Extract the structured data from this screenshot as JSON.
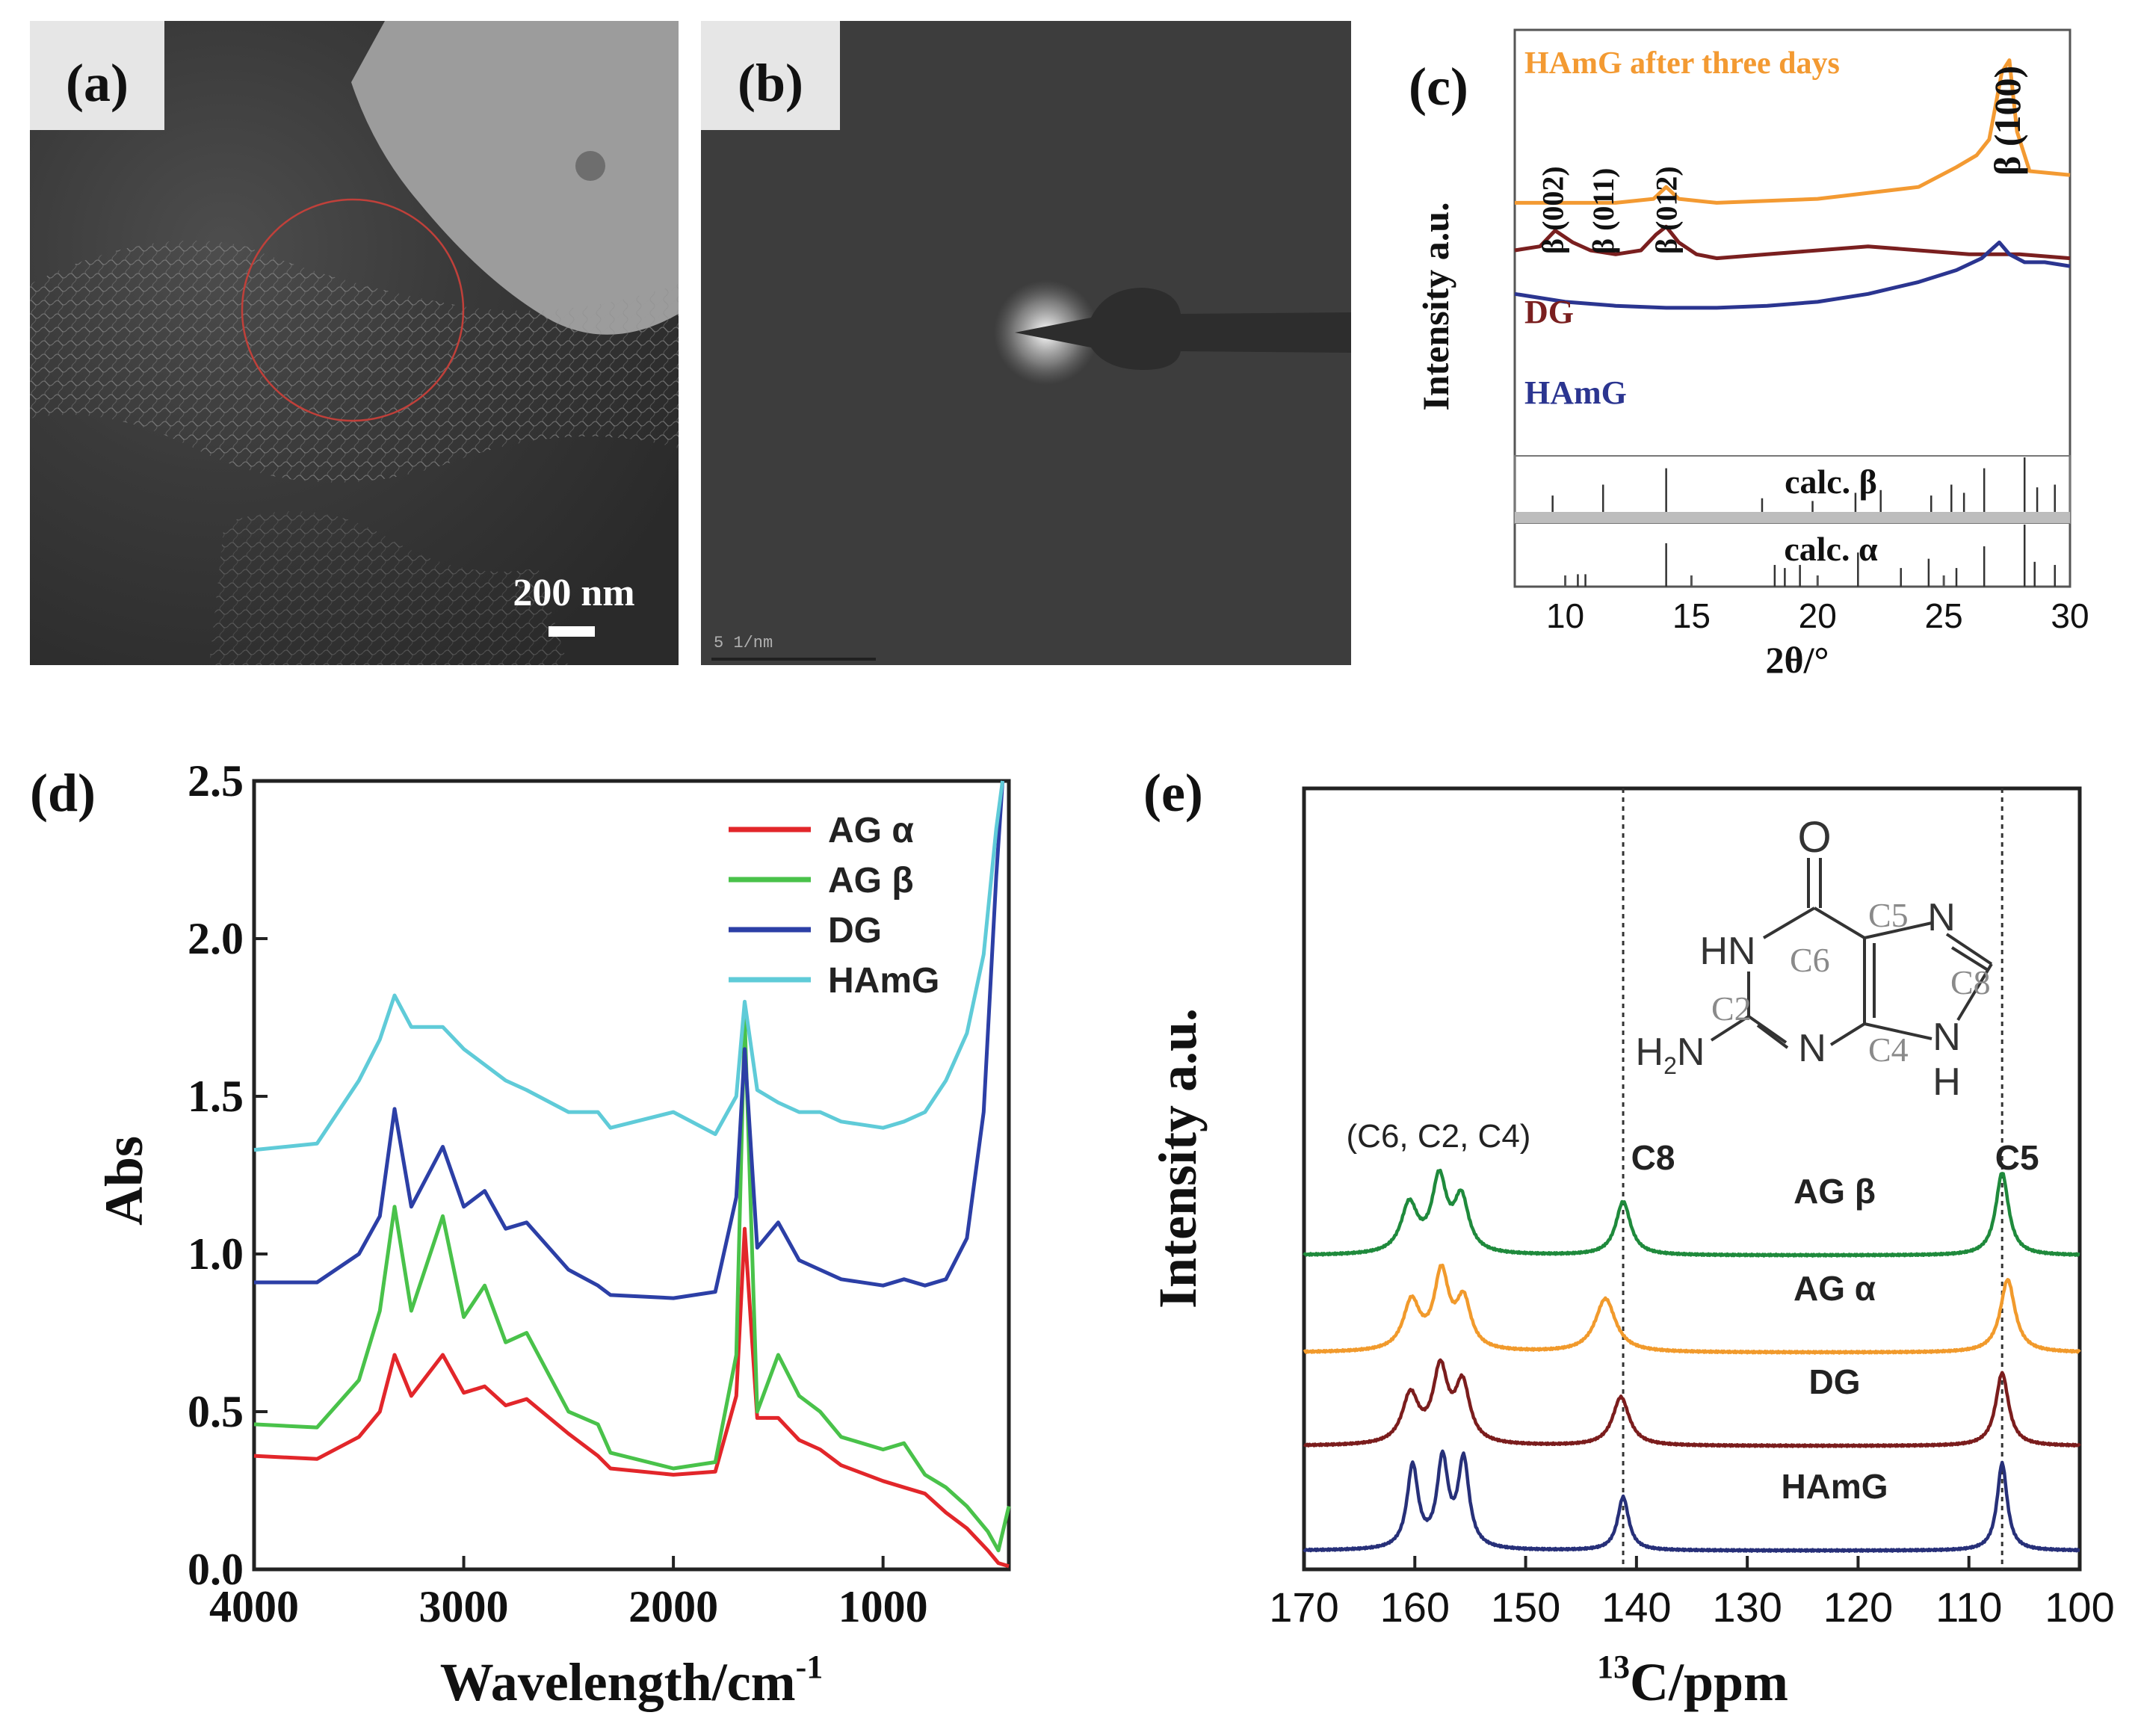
{
  "panels": {
    "a": {
      "label": "(a)",
      "scalebar": "200 nm"
    },
    "b": {
      "label": "(b)",
      "scalebar": "5 1/nm"
    },
    "c": {
      "label": "(c)"
    },
    "d": {
      "label": "(d)"
    },
    "e": {
      "label": "(e)"
    }
  },
  "colors": {
    "orange": "#f39a32",
    "darkred": "#7a1f1f",
    "navy": "#2b3590",
    "red": "#e2262a",
    "green": "#49c24a",
    "blue": "#2c3fa6",
    "cyan": "#5fcbd8",
    "nmr_green": "#1f8a3c",
    "nmr_orange": "#f19a2c",
    "nmr_darkred": "#7b1d1d",
    "nmr_navy": "#273079"
  },
  "chart_data": [
    {
      "panel": "c",
      "type": "line",
      "title": "",
      "xlabel": "2θ/°",
      "ylabel": "Intensity a.u.",
      "xlim": [
        8,
        30
      ],
      "xticks": [
        10,
        15,
        20,
        25,
        30
      ],
      "series": [
        {
          "name": "HAmG after three days",
          "color_key": "orange",
          "x": [
            8,
            10,
            12,
            13.5,
            14,
            14.5,
            16,
            20,
            24,
            25.5,
            26.3,
            26.8,
            27.3,
            27.6,
            27.9,
            28.4,
            30
          ],
          "y": [
            0.62,
            0.62,
            0.62,
            0.63,
            0.66,
            0.63,
            0.62,
            0.63,
            0.66,
            0.71,
            0.74,
            0.78,
            0.95,
            0.98,
            0.8,
            0.7,
            0.69
          ]
        },
        {
          "name": "DG",
          "color_key": "darkred",
          "x": [
            8,
            9,
            9.6,
            10.3,
            11,
            12,
            13,
            13.6,
            14,
            14.5,
            15.2,
            16,
            18,
            20,
            22,
            24,
            26,
            28,
            30
          ],
          "y": [
            0.5,
            0.51,
            0.55,
            0.52,
            0.5,
            0.49,
            0.5,
            0.54,
            0.56,
            0.52,
            0.49,
            0.48,
            0.49,
            0.5,
            0.51,
            0.5,
            0.49,
            0.49,
            0.48
          ]
        },
        {
          "name": "HAmG",
          "color_key": "navy",
          "x": [
            8,
            10,
            12,
            14,
            16,
            18,
            20,
            22,
            24,
            25.5,
            26.5,
            27.2,
            27.6,
            28.2,
            29,
            30
          ],
          "y": [
            0.39,
            0.37,
            0.36,
            0.355,
            0.355,
            0.36,
            0.37,
            0.39,
            0.42,
            0.45,
            0.48,
            0.52,
            0.49,
            0.47,
            0.47,
            0.46
          ]
        }
      ],
      "peak_labels": [
        {
          "text": "β (002)",
          "x": 9.5
        },
        {
          "text": "β (011)",
          "x": 11.5
        },
        {
          "text": "β (012)",
          "x": 14
        },
        {
          "text": "β (100)",
          "x": 27.6
        }
      ],
      "reference_patterns": [
        {
          "name": "calc. β",
          "sticks": [
            [
              9.5,
              0.3
            ],
            [
              11.5,
              0.5
            ],
            [
              14,
              0.8
            ],
            [
              17.8,
              0.25
            ],
            [
              19.8,
              0.2
            ],
            [
              21.5,
              0.35
            ],
            [
              22.5,
              0.4
            ],
            [
              24.5,
              0.3
            ],
            [
              25.3,
              0.5
            ],
            [
              25.8,
              0.35
            ],
            [
              26.6,
              0.8
            ],
            [
              28.2,
              1.0
            ],
            [
              28.7,
              0.45
            ],
            [
              29.4,
              0.5
            ]
          ]
        },
        {
          "name": "calc. α",
          "sticks": [
            [
              10.5,
              0.2
            ],
            [
              10.8,
              0.2
            ],
            [
              14,
              0.7
            ],
            [
              18.3,
              0.35
            ],
            [
              18.7,
              0.3
            ],
            [
              19.3,
              0.35
            ],
            [
              21.6,
              0.55
            ],
            [
              23.3,
              0.3
            ],
            [
              24.4,
              0.45
            ],
            [
              25.5,
              0.3
            ],
            [
              26.6,
              0.65
            ],
            [
              28.2,
              1.0
            ],
            [
              28.6,
              0.4
            ],
            [
              29.4,
              0.35
            ]
          ]
        }
      ]
    },
    {
      "panel": "d",
      "type": "line",
      "title": "",
      "xlabel": "Wavelength/cm",
      "xlabel_sup": "-1",
      "ylabel": "Abs",
      "xlim": [
        4000,
        400
      ],
      "ylim": [
        0,
        2.5
      ],
      "xticks": [
        4000,
        3000,
        2000,
        1000
      ],
      "yticks": [
        0.0,
        0.5,
        1.0,
        1.5,
        2.0,
        2.5
      ],
      "legend_position": "top-right",
      "series": [
        {
          "name": "AG α",
          "color_key": "red",
          "x": [
            4000,
            3700,
            3500,
            3400,
            3330,
            3250,
            3100,
            3000,
            2900,
            2800,
            2700,
            2500,
            2360,
            2300,
            2000,
            1800,
            1700,
            1660,
            1600,
            1500,
            1400,
            1300,
            1200,
            1000,
            900,
            800,
            700,
            600,
            500,
            450,
            400
          ],
          "y": [
            0.36,
            0.35,
            0.42,
            0.5,
            0.68,
            0.55,
            0.68,
            0.56,
            0.58,
            0.52,
            0.54,
            0.43,
            0.36,
            0.32,
            0.3,
            0.31,
            0.55,
            1.08,
            0.48,
            0.48,
            0.41,
            0.38,
            0.33,
            0.28,
            0.26,
            0.24,
            0.18,
            0.13,
            0.06,
            0.02,
            0.01
          ]
        },
        {
          "name": "AG β",
          "color_key": "green",
          "x": [
            4000,
            3700,
            3500,
            3400,
            3330,
            3250,
            3100,
            3000,
            2900,
            2800,
            2700,
            2500,
            2360,
            2300,
            2000,
            1800,
            1700,
            1660,
            1600,
            1500,
            1400,
            1300,
            1200,
            1000,
            900,
            800,
            700,
            600,
            500,
            450,
            400
          ],
          "y": [
            0.46,
            0.45,
            0.6,
            0.82,
            1.15,
            0.82,
            1.12,
            0.8,
            0.9,
            0.72,
            0.75,
            0.5,
            0.46,
            0.37,
            0.32,
            0.34,
            0.68,
            1.75,
            0.5,
            0.68,
            0.55,
            0.5,
            0.42,
            0.38,
            0.4,
            0.3,
            0.26,
            0.2,
            0.12,
            0.06,
            0.2
          ]
        },
        {
          "name": "DG",
          "color_key": "blue",
          "x": [
            4000,
            3700,
            3500,
            3400,
            3330,
            3250,
            3100,
            3000,
            2900,
            2800,
            2700,
            2500,
            2360,
            2300,
            2000,
            1800,
            1700,
            1660,
            1600,
            1500,
            1400,
            1300,
            1200,
            1000,
            900,
            800,
            700,
            600,
            520,
            460,
            430
          ],
          "y": [
            0.91,
            0.91,
            1.0,
            1.12,
            1.46,
            1.15,
            1.34,
            1.15,
            1.2,
            1.08,
            1.1,
            0.95,
            0.9,
            0.87,
            0.86,
            0.88,
            1.18,
            1.65,
            1.02,
            1.1,
            0.98,
            0.95,
            0.92,
            0.9,
            0.92,
            0.9,
            0.92,
            1.05,
            1.45,
            2.2,
            2.5
          ]
        },
        {
          "name": "HAmG",
          "color_key": "cyan",
          "x": [
            4000,
            3700,
            3500,
            3400,
            3330,
            3250,
            3100,
            3000,
            2900,
            2800,
            2700,
            2500,
            2360,
            2300,
            2000,
            1800,
            1700,
            1660,
            1600,
            1500,
            1400,
            1300,
            1200,
            1000,
            900,
            800,
            700,
            600,
            520,
            460,
            430
          ],
          "y": [
            1.33,
            1.35,
            1.55,
            1.68,
            1.82,
            1.72,
            1.72,
            1.65,
            1.6,
            1.55,
            1.52,
            1.45,
            1.45,
            1.4,
            1.45,
            1.38,
            1.5,
            1.8,
            1.52,
            1.48,
            1.45,
            1.45,
            1.42,
            1.4,
            1.42,
            1.45,
            1.55,
            1.7,
            1.95,
            2.35,
            2.5
          ]
        }
      ]
    },
    {
      "panel": "e",
      "type": "line",
      "title": "",
      "xlabel": "C/ppm",
      "xlabel_sup": "13",
      "ylabel": "Intensity a.u.",
      "xlim": [
        170,
        100
      ],
      "xticks": [
        170,
        160,
        150,
        140,
        130,
        120,
        110,
        100
      ],
      "reference_lines": [
        141.2,
        107
      ],
      "group_label": "(C6, C2, C4)",
      "peak_labels": [
        {
          "text": "C8",
          "x": 141.2
        },
        {
          "text": "C5",
          "x": 107
        }
      ],
      "molecule_labels": {
        "O": "O",
        "HN": "HN",
        "N_top": "N",
        "N_mid": "N",
        "NH": "N",
        "H": "H",
        "H2N": "H",
        "H2N_sub": "2",
        "H2N_n": "N",
        "C2": "C2",
        "C4": "C4",
        "C5": "C5",
        "C6": "C6",
        "C8": "C8"
      },
      "series": [
        {
          "name": "AG β",
          "color_key": "nmr_green",
          "peaks": [
            [
              160.5,
              0.5,
              0.9
            ],
            [
              157.8,
              0.75,
              0.8
            ],
            [
              155.8,
              0.55,
              0.8
            ],
            [
              141.2,
              0.55,
              0.8
            ],
            [
              107,
              0.85,
              0.7
            ]
          ]
        },
        {
          "name": "AG α",
          "color_key": "nmr_orange",
          "peaks": [
            [
              160.3,
              0.5,
              0.9
            ],
            [
              157.6,
              0.78,
              0.8
            ],
            [
              155.6,
              0.5,
              0.8
            ],
            [
              142.8,
              0.55,
              1.1
            ],
            [
              106.5,
              0.75,
              0.8
            ]
          ]
        },
        {
          "name": "DG",
          "color_key": "nmr_darkred",
          "peaks": [
            [
              160.4,
              0.5,
              0.9
            ],
            [
              157.7,
              0.75,
              0.8
            ],
            [
              155.7,
              0.6,
              0.8
            ],
            [
              141.4,
              0.5,
              0.9
            ],
            [
              107,
              0.75,
              0.7
            ]
          ]
        },
        {
          "name": "HAmG",
          "color_key": "nmr_navy",
          "peaks": [
            [
              160.2,
              0.85,
              0.6
            ],
            [
              157.5,
              0.9,
              0.6
            ],
            [
              155.6,
              0.9,
              0.6
            ],
            [
              141.2,
              0.55,
              0.6
            ],
            [
              107,
              0.9,
              0.55
            ]
          ]
        }
      ]
    }
  ]
}
